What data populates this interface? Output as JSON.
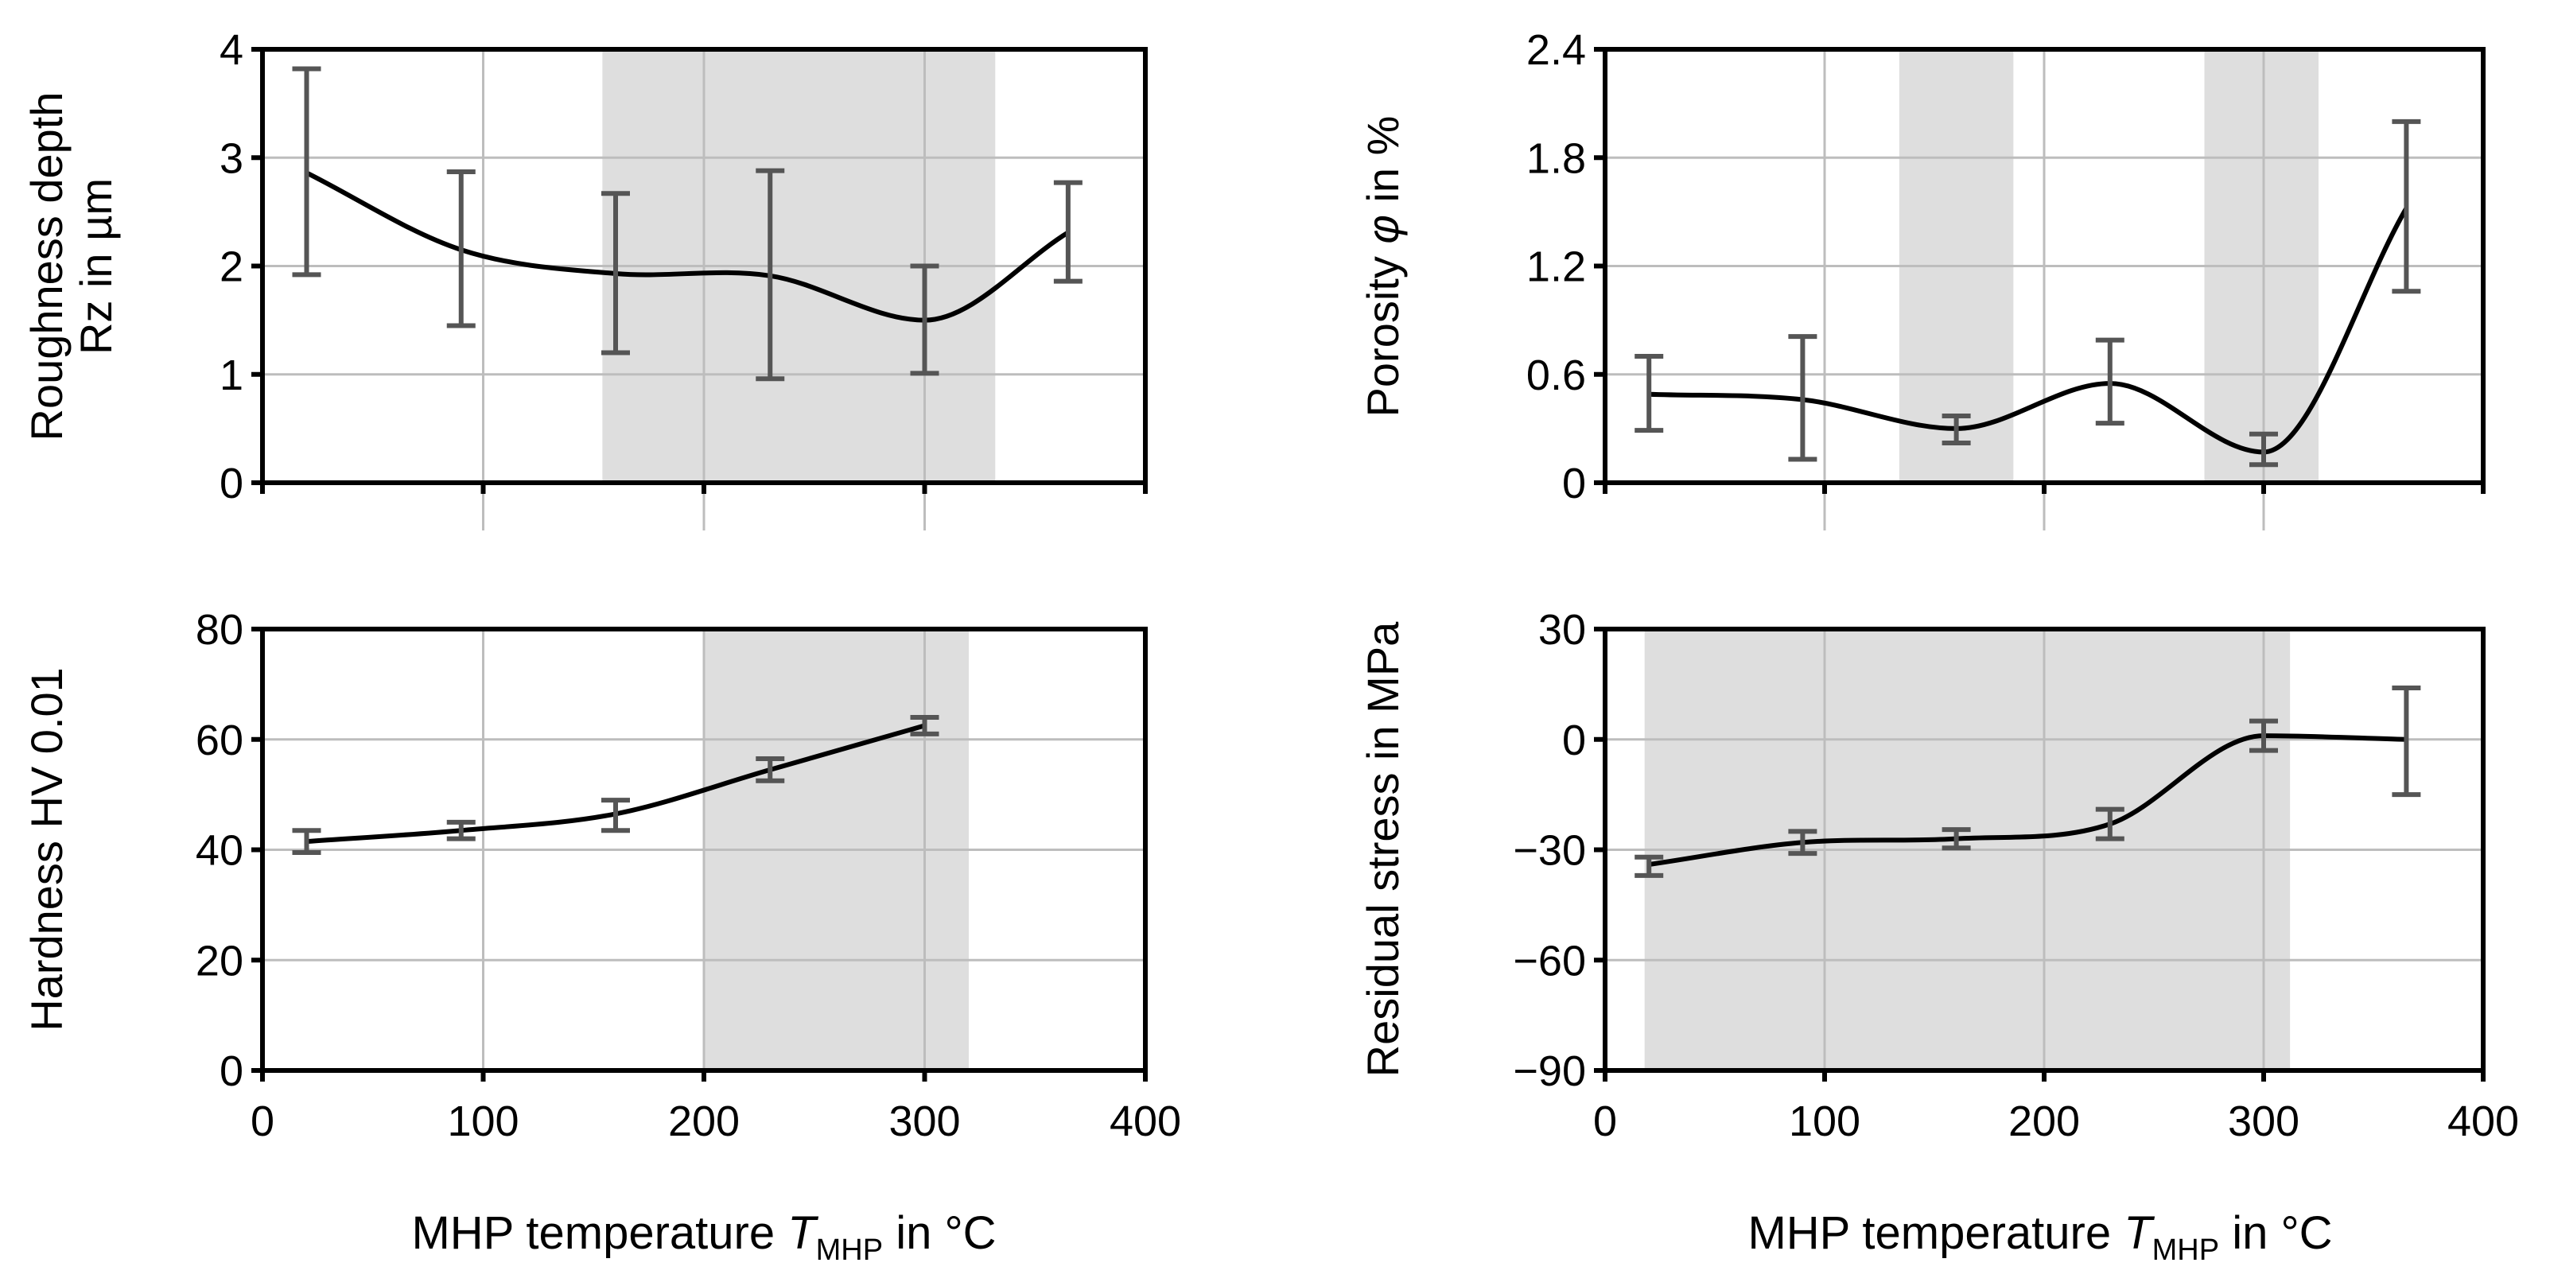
{
  "chart_data": [
    {
      "type": "line",
      "id": "roughness",
      "ylabel_lines": [
        "Roughness depth",
        "Rz in µm"
      ],
      "ylim": [
        0,
        4
      ],
      "yticks": [
        0,
        1,
        2,
        3,
        4
      ],
      "ytick_labels": [
        "0",
        "1",
        "2",
        "3",
        "4"
      ],
      "xlim": [
        0,
        400
      ],
      "xticks": [
        0,
        100,
        200,
        300,
        400
      ],
      "shaded_x_ranges": [
        [
          154,
          332
        ]
      ],
      "series": [
        {
          "name": "Rz",
          "x": [
            20,
            90,
            160,
            230,
            300,
            365
          ],
          "y": [
            2.86,
            2.15,
            1.93,
            1.91,
            1.5,
            2.31
          ],
          "err_low": [
            1.92,
            1.45,
            1.2,
            0.96,
            1.01,
            1.86
          ],
          "err_high": [
            3.82,
            2.87,
            2.67,
            2.88,
            2.0,
            2.77
          ]
        }
      ]
    },
    {
      "type": "line",
      "id": "porosity",
      "ylabel_parts": [
        "Porosity ",
        "φ",
        " in %"
      ],
      "ylim": [
        0,
        2.4
      ],
      "yticks": [
        0,
        0.6,
        1.2,
        1.8,
        2.4
      ],
      "ytick_labels": [
        "0",
        "0.6",
        "1.2",
        "1.8",
        "2.4"
      ],
      "xlim": [
        0,
        400
      ],
      "xticks": [
        0,
        100,
        200,
        300,
        400
      ],
      "shaded_x_ranges": [
        [
          134,
          186
        ],
        [
          273,
          325
        ]
      ],
      "series": [
        {
          "name": "Porosity",
          "x": [
            20,
            90,
            160,
            230,
            300,
            365
          ],
          "y": [
            0.49,
            0.46,
            0.3,
            0.55,
            0.17,
            1.52
          ],
          "err_low": [
            0.29,
            0.13,
            0.22,
            0.33,
            0.1,
            1.06
          ],
          "err_high": [
            0.7,
            0.81,
            0.37,
            0.79,
            0.27,
            2.0
          ]
        }
      ]
    },
    {
      "type": "line",
      "id": "hardness",
      "ylabel_lines": [
        "Hardness HV 0.01"
      ],
      "ylim": [
        0,
        80
      ],
      "yticks": [
        0,
        20,
        40,
        60,
        80
      ],
      "ytick_labels": [
        "0",
        "20",
        "40",
        "60",
        "80"
      ],
      "xlim": [
        0,
        400
      ],
      "xticks": [
        0,
        100,
        200,
        300,
        400
      ],
      "xtick_labels": [
        "0",
        "100",
        "200",
        "300",
        "400"
      ],
      "xlabel_parts": [
        "MHP temperature ",
        "T",
        "MHP",
        " in °C"
      ],
      "shaded_x_ranges": [
        [
          200,
          320
        ]
      ],
      "series": [
        {
          "name": "Hardness",
          "x": [
            20,
            90,
            160,
            230,
            300
          ],
          "y": [
            41.5,
            43.5,
            46.5,
            54.5,
            62.5
          ],
          "err_low": [
            39.5,
            42.0,
            43.5,
            52.5,
            61.0
          ],
          "err_high": [
            43.5,
            45.0,
            49.0,
            56.5,
            64.0
          ]
        }
      ]
    },
    {
      "type": "line",
      "id": "residual_stress",
      "ylabel_lines": [
        "Residual stress in MPa"
      ],
      "ylim": [
        -90,
        30
      ],
      "yticks": [
        -90,
        -60,
        -30,
        0,
        30
      ],
      "ytick_labels": [
        "−90",
        "−60",
        "−30",
        "0",
        "30"
      ],
      "xlim": [
        0,
        400
      ],
      "xticks": [
        0,
        100,
        200,
        300,
        400
      ],
      "xtick_labels": [
        "0",
        "100",
        "200",
        "300",
        "400"
      ],
      "xlabel_parts": [
        "MHP temperature ",
        "T",
        "MHP",
        " in °C"
      ],
      "shaded_x_ranges": [
        [
          18,
          312
        ]
      ],
      "series": [
        {
          "name": "Residual stress",
          "x": [
            20,
            90,
            160,
            230,
            300,
            365
          ],
          "y": [
            -34,
            -28,
            -27,
            -23,
            1,
            0
          ],
          "err_low": [
            -37,
            -31,
            -29.5,
            -27,
            -3,
            -15
          ],
          "err_high": [
            -32,
            -25,
            -24.5,
            -19,
            5,
            14
          ]
        }
      ]
    }
  ]
}
